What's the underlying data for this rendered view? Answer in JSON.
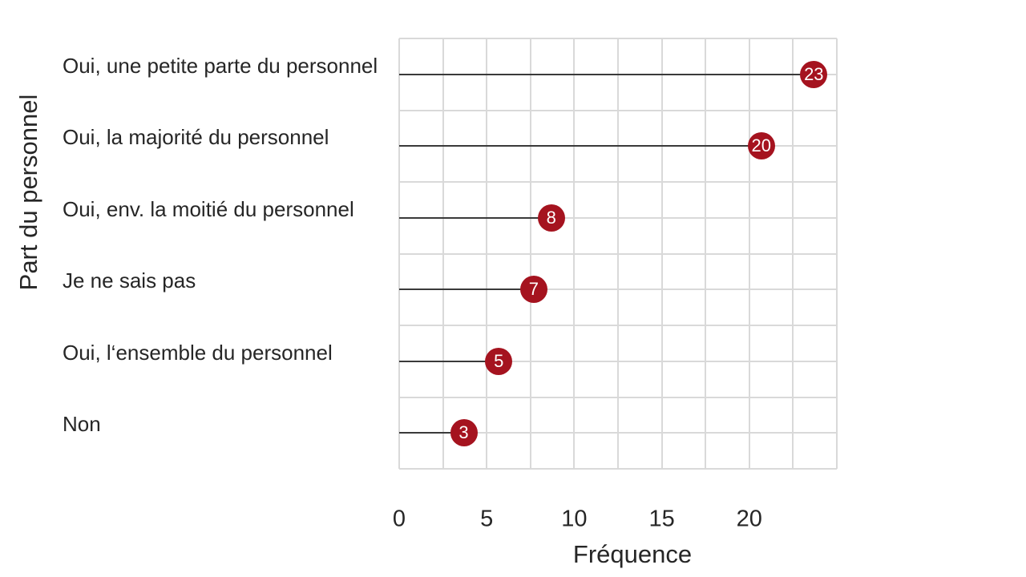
{
  "chart_data": {
    "type": "bar",
    "variant": "horizontal-lollipop",
    "title": "",
    "categories": [
      "Oui, une petite parte du personnel",
      "Oui, la majorité du personnel",
      "Oui, env. la moitié du personnel",
      "Je ne sais pas",
      "Oui, l‘ensemble du personnel",
      "Non"
    ],
    "values": [
      23,
      20,
      8,
      7,
      5,
      3
    ],
    "xlabel": "Fréquence",
    "ylabel": "Part du personnel",
    "xlim": [
      0,
      25
    ],
    "xticks": [
      0,
      5,
      10,
      15,
      20
    ],
    "grid": "on",
    "grid_x_interval": 2.5,
    "grid_y_lines_per_row": 2,
    "legend": "none"
  },
  "colors": {
    "dot": "#a5131f",
    "dot_text": "#ffffff",
    "stem": "#3a3a3a",
    "grid": "#d9d9d9",
    "text": "#262626",
    "background": "#ffffff"
  }
}
